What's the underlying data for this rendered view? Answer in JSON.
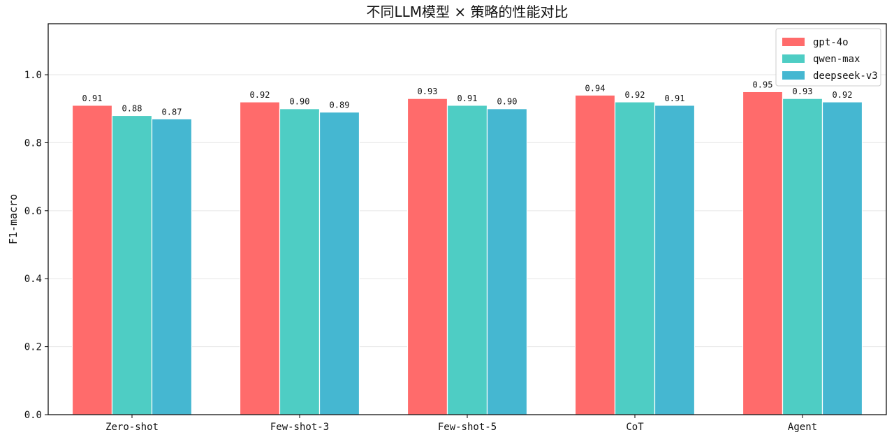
{
  "chart_data": {
    "type": "bar",
    "title": "不同LLM模型 × 策略的性能对比",
    "xlabel": "",
    "ylabel": "F1-macro",
    "ylim": [
      0,
      1.15
    ],
    "yticks": [
      0.0,
      0.2,
      0.4,
      0.6,
      0.8,
      1.0
    ],
    "ytick_labels": [
      "0.0",
      "0.2",
      "0.4",
      "0.6",
      "0.8",
      "1.0"
    ],
    "grid": "horizontal",
    "legend_position": "top-right",
    "categories": [
      "Zero-shot",
      "Few-shot-3",
      "Few-shot-5",
      "CoT",
      "Agent"
    ],
    "series": [
      {
        "name": "gpt-4o",
        "color": "#ff6b6b",
        "values": [
          0.91,
          0.92,
          0.93,
          0.94,
          0.95
        ],
        "labels": [
          "0.91",
          "0.92",
          "0.93",
          "0.94",
          "0.95"
        ]
      },
      {
        "name": "qwen-max",
        "color": "#4ecdc4",
        "values": [
          0.88,
          0.9,
          0.91,
          0.92,
          0.93
        ],
        "labels": [
          "0.88",
          "0.90",
          "0.91",
          "0.92",
          "0.93"
        ]
      },
      {
        "name": "deepseek-v3",
        "color": "#45b7d1",
        "values": [
          0.87,
          0.89,
          0.9,
          0.91,
          0.92
        ],
        "labels": [
          "0.87",
          "0.89",
          "0.90",
          "0.91",
          "0.92"
        ]
      }
    ]
  }
}
